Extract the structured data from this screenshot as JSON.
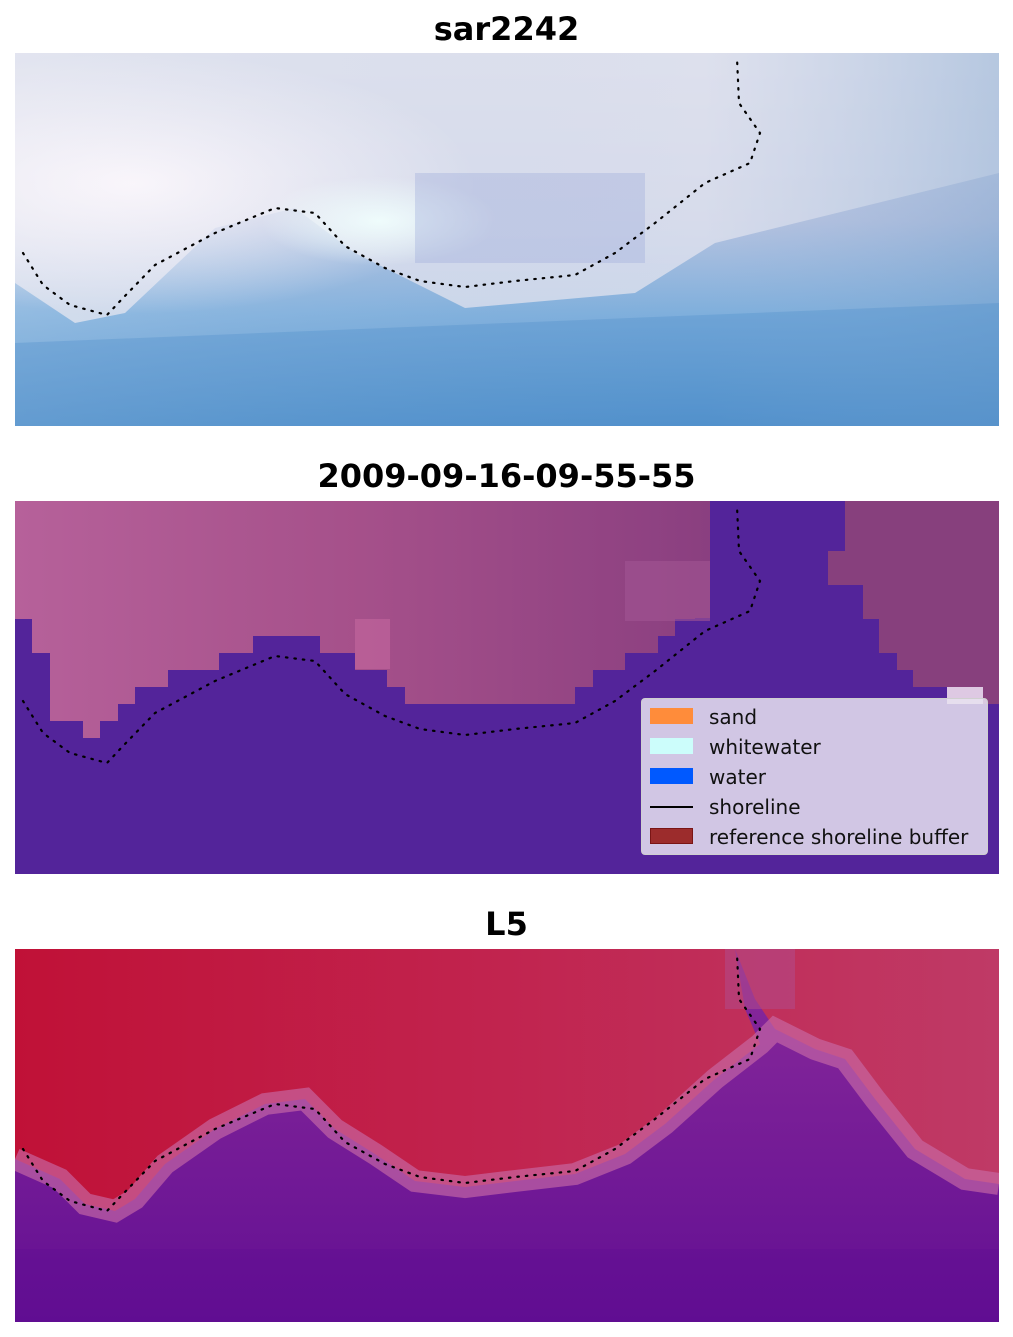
{
  "panels": [
    {
      "title": "sar2242"
    },
    {
      "title": "2009-09-16-09-55-55"
    },
    {
      "title": "L5"
    }
  ],
  "legend": {
    "items": [
      {
        "label": "sand",
        "kind": "patch",
        "color": "#ff8c3a"
      },
      {
        "label": "whitewater",
        "kind": "patch",
        "color": "#ccfdfb"
      },
      {
        "label": "water",
        "kind": "patch",
        "color": "#0059ff"
      },
      {
        "label": "shoreline",
        "kind": "line",
        "color": "#000000"
      },
      {
        "label": "reference shoreline buffer",
        "kind": "patch",
        "color": "#9c2c2c"
      }
    ]
  },
  "colors": {
    "rgb_sky_light": "#f0eef5",
    "rgb_water": "#5b9ad1",
    "classified_land": "#b0588f",
    "classified_water": "#53249a",
    "index_high": "#c0183e",
    "index_low": "#6e1493"
  }
}
